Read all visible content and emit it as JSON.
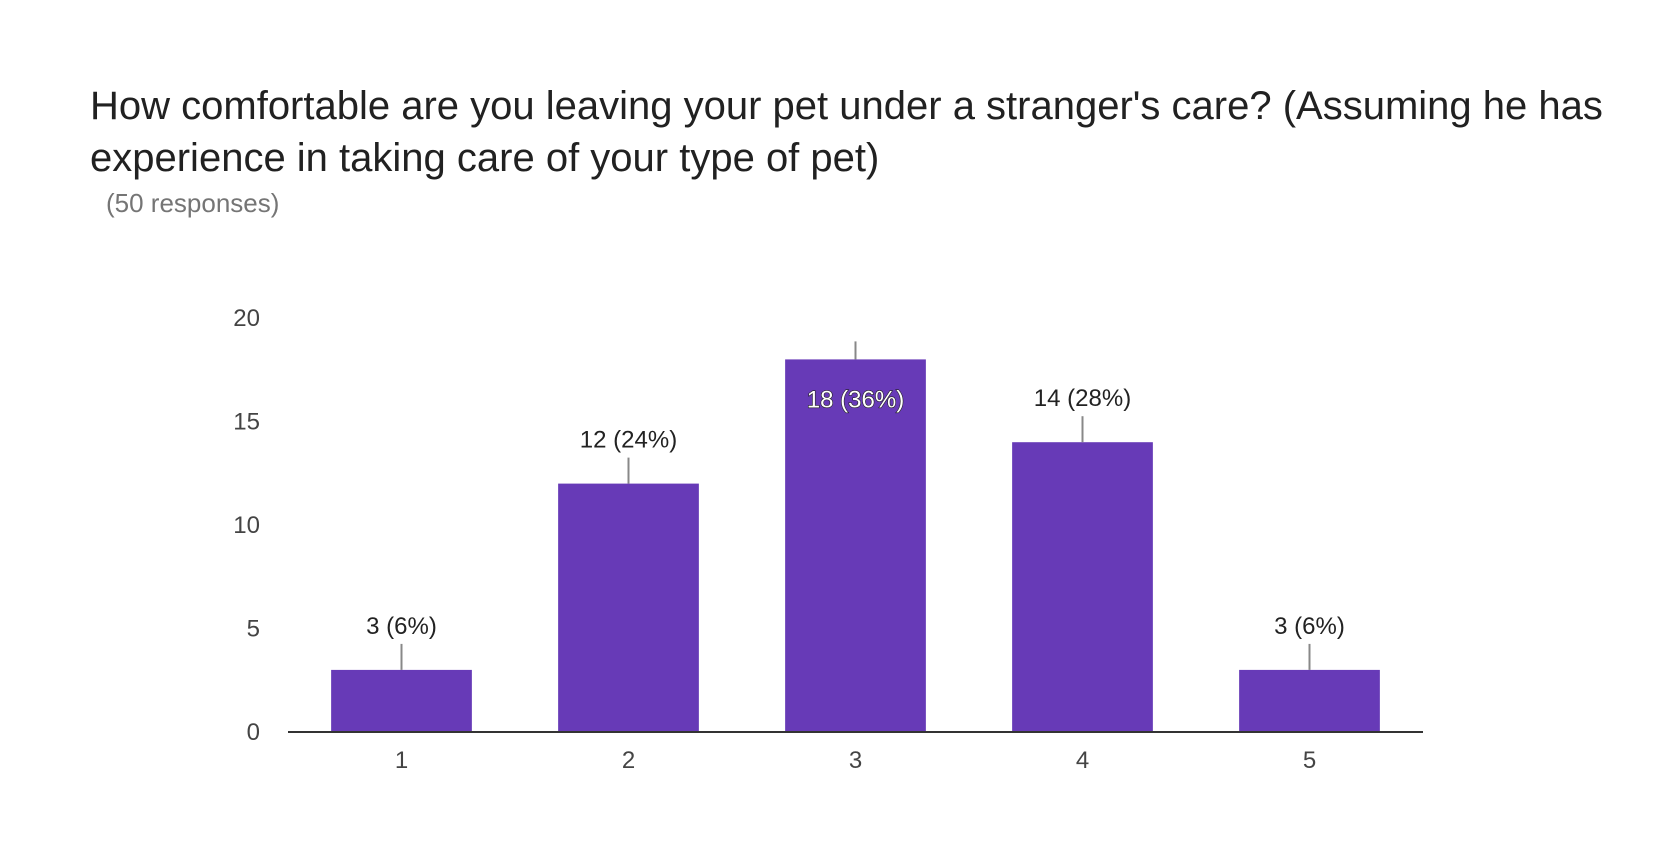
{
  "title": "How comfortable are you leaving your pet under a stranger's care? (Assuming he has experience in taking care of your type of pet)",
  "subtitle": "(50 responses)",
  "chart_data": {
    "type": "bar",
    "categories": [
      "1",
      "2",
      "3",
      "4",
      "5"
    ],
    "values": [
      3,
      12,
      18,
      14,
      3
    ],
    "data_labels": [
      "3 (6%)",
      "12 (24%)",
      "18 (36%)",
      "14 (28%)",
      "3 (6%)"
    ],
    "label_inside": [
      false,
      false,
      true,
      false,
      false
    ],
    "ylim": [
      0,
      20
    ],
    "yticks": [
      "0",
      "5",
      "10",
      "15",
      "20"
    ],
    "bar_color": "#673ab7",
    "grid": false,
    "legend": "none"
  }
}
